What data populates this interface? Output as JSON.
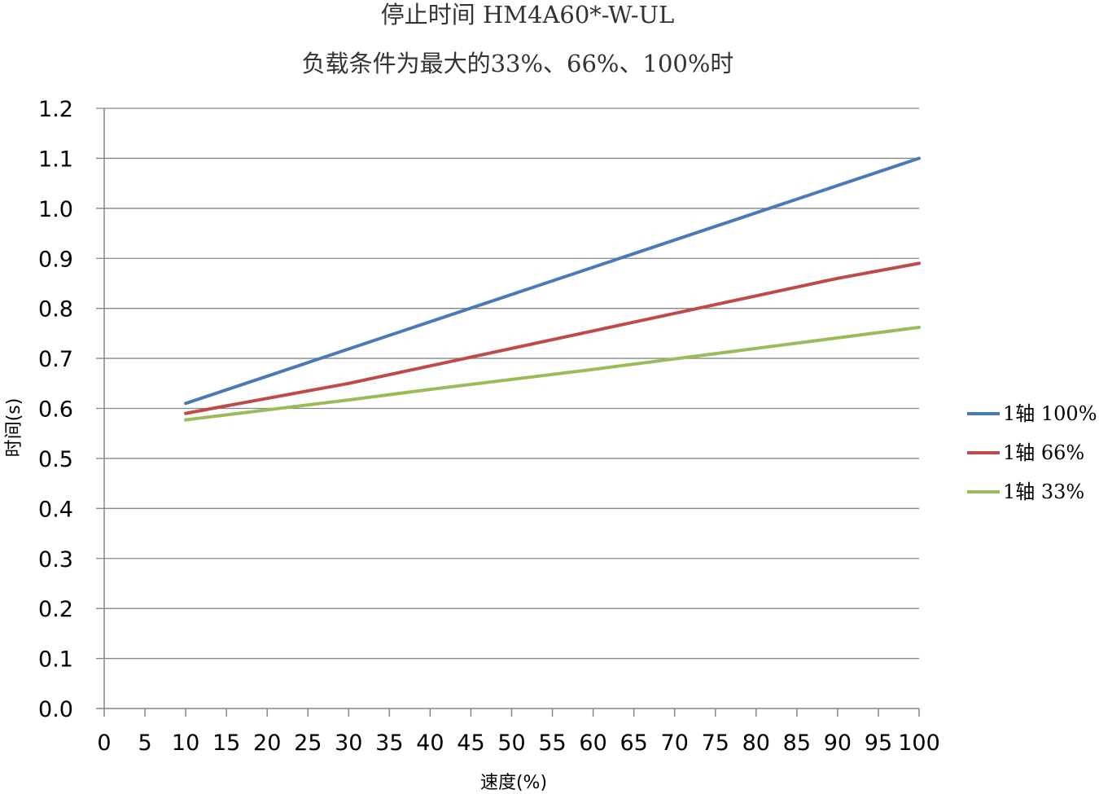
{
  "chart_data": {
    "type": "line",
    "title": "停止时间 HM4A60*-W-UL",
    "subtitle": "负载条件为最大的33%、66%、100%时",
    "xlabel": "速度(%)",
    "ylabel": "时间(s)",
    "xlim": [
      0,
      100
    ],
    "ylim": [
      0,
      1.2
    ],
    "x_ticks": [
      "0",
      "5",
      "10",
      "15",
      "20",
      "25",
      "30",
      "35",
      "40",
      "45",
      "50",
      "55",
      "60",
      "65",
      "70",
      "75",
      "80",
      "85",
      "90",
      "95",
      "100"
    ],
    "y_ticks": [
      "0.0",
      "0.1",
      "0.2",
      "0.3",
      "0.4",
      "0.5",
      "0.6",
      "0.7",
      "0.8",
      "0.9",
      "1.0",
      "1.1",
      "1.2"
    ],
    "grid": true,
    "legend_position": "right",
    "series": [
      {
        "name": "1轴 100%",
        "color": "#4a7ab4",
        "x": [
          10,
          100
        ],
        "y": [
          0.61,
          1.1
        ]
      },
      {
        "name": "1轴 66%",
        "color": "#be4b48",
        "x": [
          10,
          20,
          30,
          40,
          50,
          60,
          70,
          80,
          90,
          100
        ],
        "y": [
          0.59,
          0.62,
          0.65,
          0.685,
          0.72,
          0.755,
          0.79,
          0.825,
          0.86,
          0.89
        ]
      },
      {
        "name": "1轴 33%",
        "color": "#9bbb59",
        "x": [
          10,
          20,
          30,
          40,
          50,
          60,
          70,
          80,
          90,
          100
        ],
        "y": [
          0.577,
          0.597,
          0.617,
          0.638,
          0.658,
          0.678,
          0.699,
          0.72,
          0.741,
          0.762
        ]
      }
    ]
  }
}
